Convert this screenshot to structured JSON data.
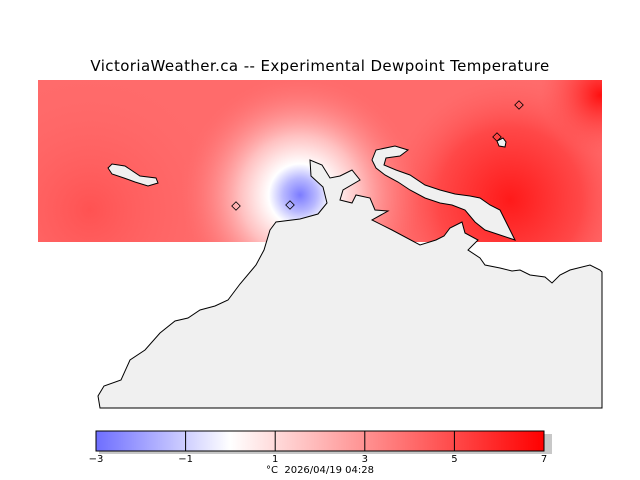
{
  "title": "VictoriaWeather.ca -- Experimental Dewpoint Temperature",
  "colorbar": {
    "min": -3,
    "max": 7,
    "tick_values": [
      -3,
      -1,
      1,
      3,
      5,
      7
    ],
    "tick_labels": [
      "−3",
      "−1",
      "1",
      "3",
      "5",
      "7"
    ],
    "cold_color": "#6e6eff",
    "zero_color": "#ffffff",
    "warm_color": "#ff0000"
  },
  "caption": {
    "unit": "°C",
    "timestamp": "2026/04/19 04:28"
  },
  "colors": {
    "land": "#f0f0f0",
    "coastline": "#000000",
    "background": "#ffffff"
  }
}
